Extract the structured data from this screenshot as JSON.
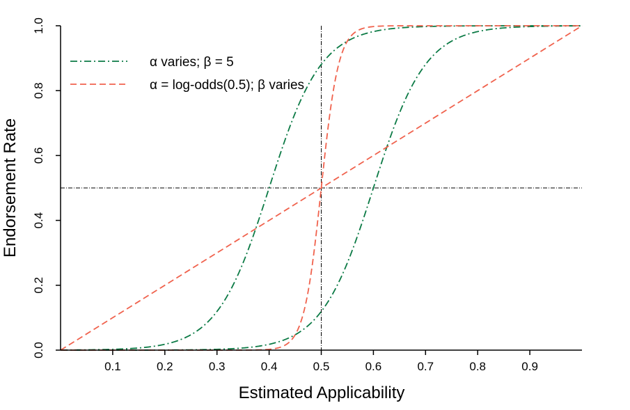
{
  "chart_data": {
    "type": "line",
    "xlabel": "Estimated Applicability",
    "ylabel": "Endorsement Rate",
    "xlim": [
      0,
      1
    ],
    "ylim": [
      0,
      1
    ],
    "x_ticks": [
      "0.1",
      "0.2",
      "0.3",
      "0.4",
      "0.5",
      "0.6",
      "0.7",
      "0.8",
      "0.9"
    ],
    "y_ticks": [
      "0.0",
      "0.2",
      "0.4",
      "0.6",
      "0.8",
      "1.0"
    ],
    "legend": {
      "position": "top-left",
      "entries": [
        {
          "label": "α varies; β = 5",
          "color": "#0b7a45",
          "style": "dashdot"
        },
        {
          "label": "α = log-odds(0.5); β varies",
          "color": "#f0624d",
          "style": "dashed"
        }
      ]
    },
    "reference_lines": [
      {
        "orientation": "vertical",
        "value": 0.5,
        "color": "#000000"
      },
      {
        "orientation": "horizontal",
        "value": 0.5,
        "color": "#000000"
      }
    ],
    "series": [
      {
        "group": "alpha-varies",
        "color": "#0b7a45",
        "style": "dashdot",
        "midpoint": 0.4,
        "steepness": 5,
        "x": [
          0,
          0.1,
          0.2,
          0.25,
          0.3,
          0.35,
          0.4,
          0.45,
          0.5,
          0.55,
          0.6,
          0.7,
          0.8,
          1.0
        ],
        "y": [
          0,
          0.0,
          0.005,
          0.03,
          0.12,
          0.3,
          0.5,
          0.7,
          0.88,
          0.96,
          0.98,
          0.995,
          1.0,
          1.0
        ]
      },
      {
        "group": "alpha-varies",
        "color": "#0b7a45",
        "style": "dashdot",
        "midpoint": 0.6,
        "steepness": 5,
        "x": [
          0,
          0.2,
          0.3,
          0.4,
          0.45,
          0.5,
          0.55,
          0.6,
          0.65,
          0.7,
          0.75,
          0.8,
          0.9,
          1.0
        ],
        "y": [
          0,
          0.0,
          0.003,
          0.012,
          0.04,
          0.12,
          0.3,
          0.5,
          0.7,
          0.88,
          0.96,
          0.985,
          0.998,
          1.0
        ]
      },
      {
        "group": "beta-varies",
        "color": "#f0624d",
        "style": "dashed",
        "midpoint": 0.5,
        "steepness": 1,
        "x": [
          0,
          0.1,
          0.2,
          0.3,
          0.4,
          0.5,
          0.6,
          0.7,
          0.8,
          0.9,
          1.0
        ],
        "y": [
          0,
          0.1,
          0.2,
          0.3,
          0.4,
          0.5,
          0.6,
          0.7,
          0.8,
          0.9,
          1.0
        ]
      },
      {
        "group": "beta-varies",
        "color": "#f0624d",
        "style": "dashed",
        "midpoint": 0.5,
        "steepness": 30,
        "x": [
          0,
          0.46,
          0.47,
          0.48,
          0.49,
          0.5,
          0.51,
          0.52,
          0.53,
          0.54,
          1.0
        ],
        "y": [
          0,
          0.0,
          0.01,
          0.08,
          0.3,
          0.5,
          0.7,
          0.92,
          0.99,
          1.0,
          1.0
        ]
      }
    ]
  }
}
